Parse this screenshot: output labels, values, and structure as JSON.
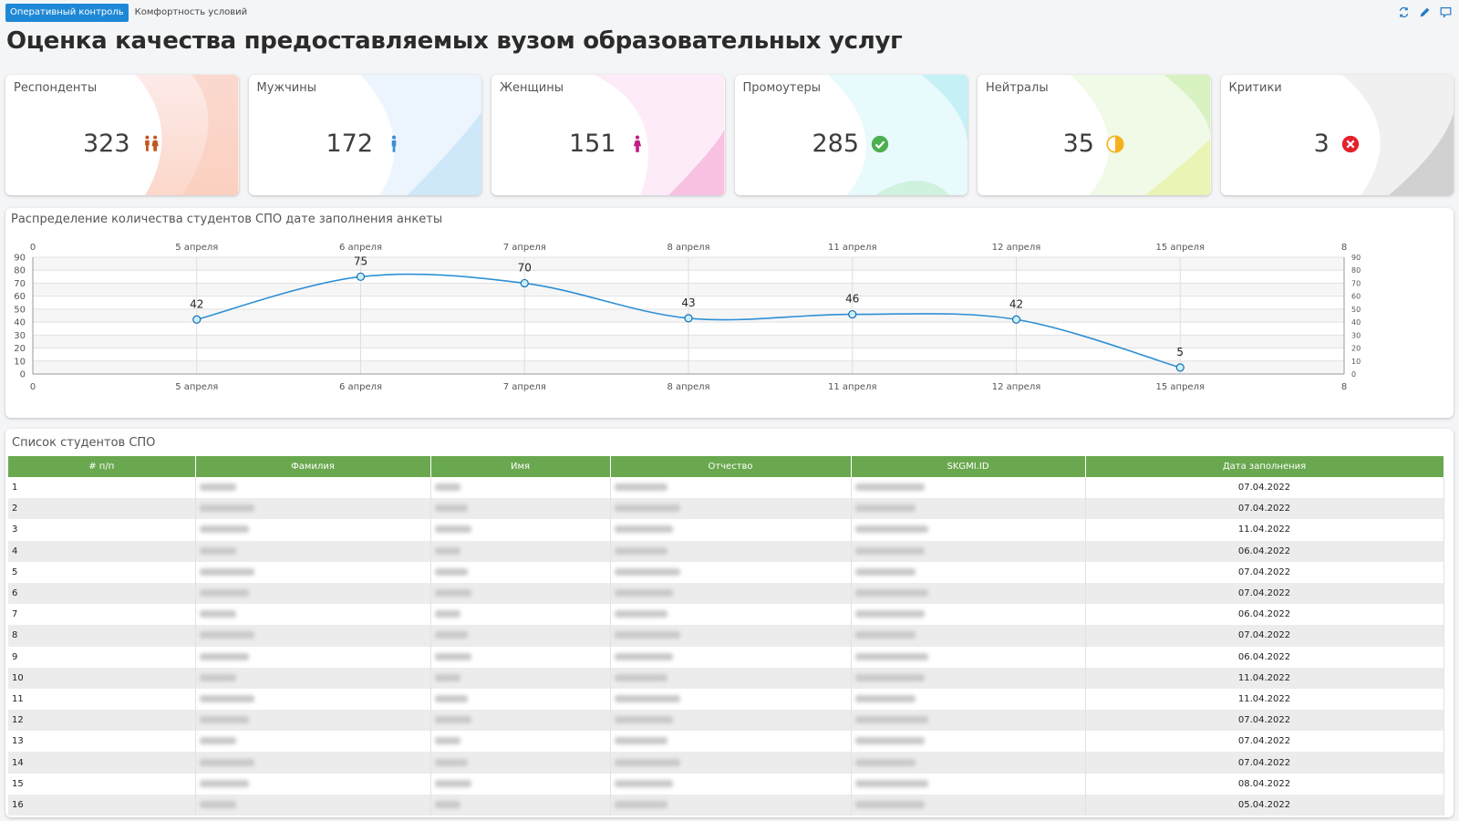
{
  "tabs": [
    {
      "label": "Оперативный контроль",
      "active": true
    },
    {
      "label": "Комфортность условий",
      "active": false
    }
  ],
  "tools": [
    "refresh-icon",
    "edit-icon",
    "comment-icon"
  ],
  "page_title": "Оценка качества предоставляемых вузом образовательных услуг",
  "kpis": [
    {
      "label": "Респонденты",
      "value": "323",
      "icon": "people-icon",
      "color": "#f8c3ad"
    },
    {
      "label": "Мужчины",
      "value": "172",
      "icon": "male-icon",
      "color": "#b9dcf5"
    },
    {
      "label": "Женщины",
      "value": "151",
      "icon": "female-icon",
      "color": "#f7b9e0"
    },
    {
      "label": "Промоутеры",
      "value": "285",
      "icon": "check-circle-icon",
      "color": "#b5ecf2"
    },
    {
      "label": "Нейтралы",
      "value": "35",
      "icon": "half-circle-icon",
      "color": "#d6f0b8"
    },
    {
      "label": "Критики",
      "value": "3",
      "icon": "x-circle-icon",
      "color": "#cfcfcf"
    }
  ],
  "chart": {
    "title": "Распределение количества студентов СПО дате заполнения анкеты"
  },
  "chart_data": {
    "type": "line",
    "categories": [
      "0",
      "5 апреля",
      "6 апреля",
      "7 апреля",
      "8 апреля",
      "11 апреля",
      "12 апреля",
      "15 апреля",
      "8"
    ],
    "points": [
      {
        "x": "5 апреля",
        "y": 42
      },
      {
        "x": "6 апреля",
        "y": 75
      },
      {
        "x": "7 апреля",
        "y": 70
      },
      {
        "x": "8 апреля",
        "y": 43
      },
      {
        "x": "11 апреля",
        "y": 46
      },
      {
        "x": "12 апреля",
        "y": 42
      },
      {
        "x": "15 апреля",
        "y": 5
      }
    ],
    "y_ticks": [
      0,
      10,
      20,
      30,
      40,
      50,
      60,
      70,
      80,
      90
    ],
    "ylim": [
      0,
      90
    ],
    "grid": true,
    "line_color": "#2e8fd4"
  },
  "table": {
    "title": "Список студентов СПО",
    "columns": [
      "# п/п",
      "Фамилия",
      "Имя",
      "Отчество",
      "SKGMI.ID",
      "Дата заполнения"
    ],
    "rows": [
      {
        "n": "1",
        "date": "07.04.2022"
      },
      {
        "n": "2",
        "date": "07.04.2022"
      },
      {
        "n": "3",
        "date": "11.04.2022"
      },
      {
        "n": "4",
        "date": "06.04.2022"
      },
      {
        "n": "5",
        "date": "07.04.2022"
      },
      {
        "n": "6",
        "date": "07.04.2022"
      },
      {
        "n": "7",
        "date": "06.04.2022"
      },
      {
        "n": "8",
        "date": "07.04.2022"
      },
      {
        "n": "9",
        "date": "06.04.2022"
      },
      {
        "n": "10",
        "date": "11.04.2022"
      },
      {
        "n": "11",
        "date": "11.04.2022"
      },
      {
        "n": "12",
        "date": "07.04.2022"
      },
      {
        "n": "13",
        "date": "07.04.2022"
      },
      {
        "n": "14",
        "date": "07.04.2022"
      },
      {
        "n": "15",
        "date": "08.04.2022"
      },
      {
        "n": "16",
        "date": "05.04.2022"
      }
    ]
  }
}
